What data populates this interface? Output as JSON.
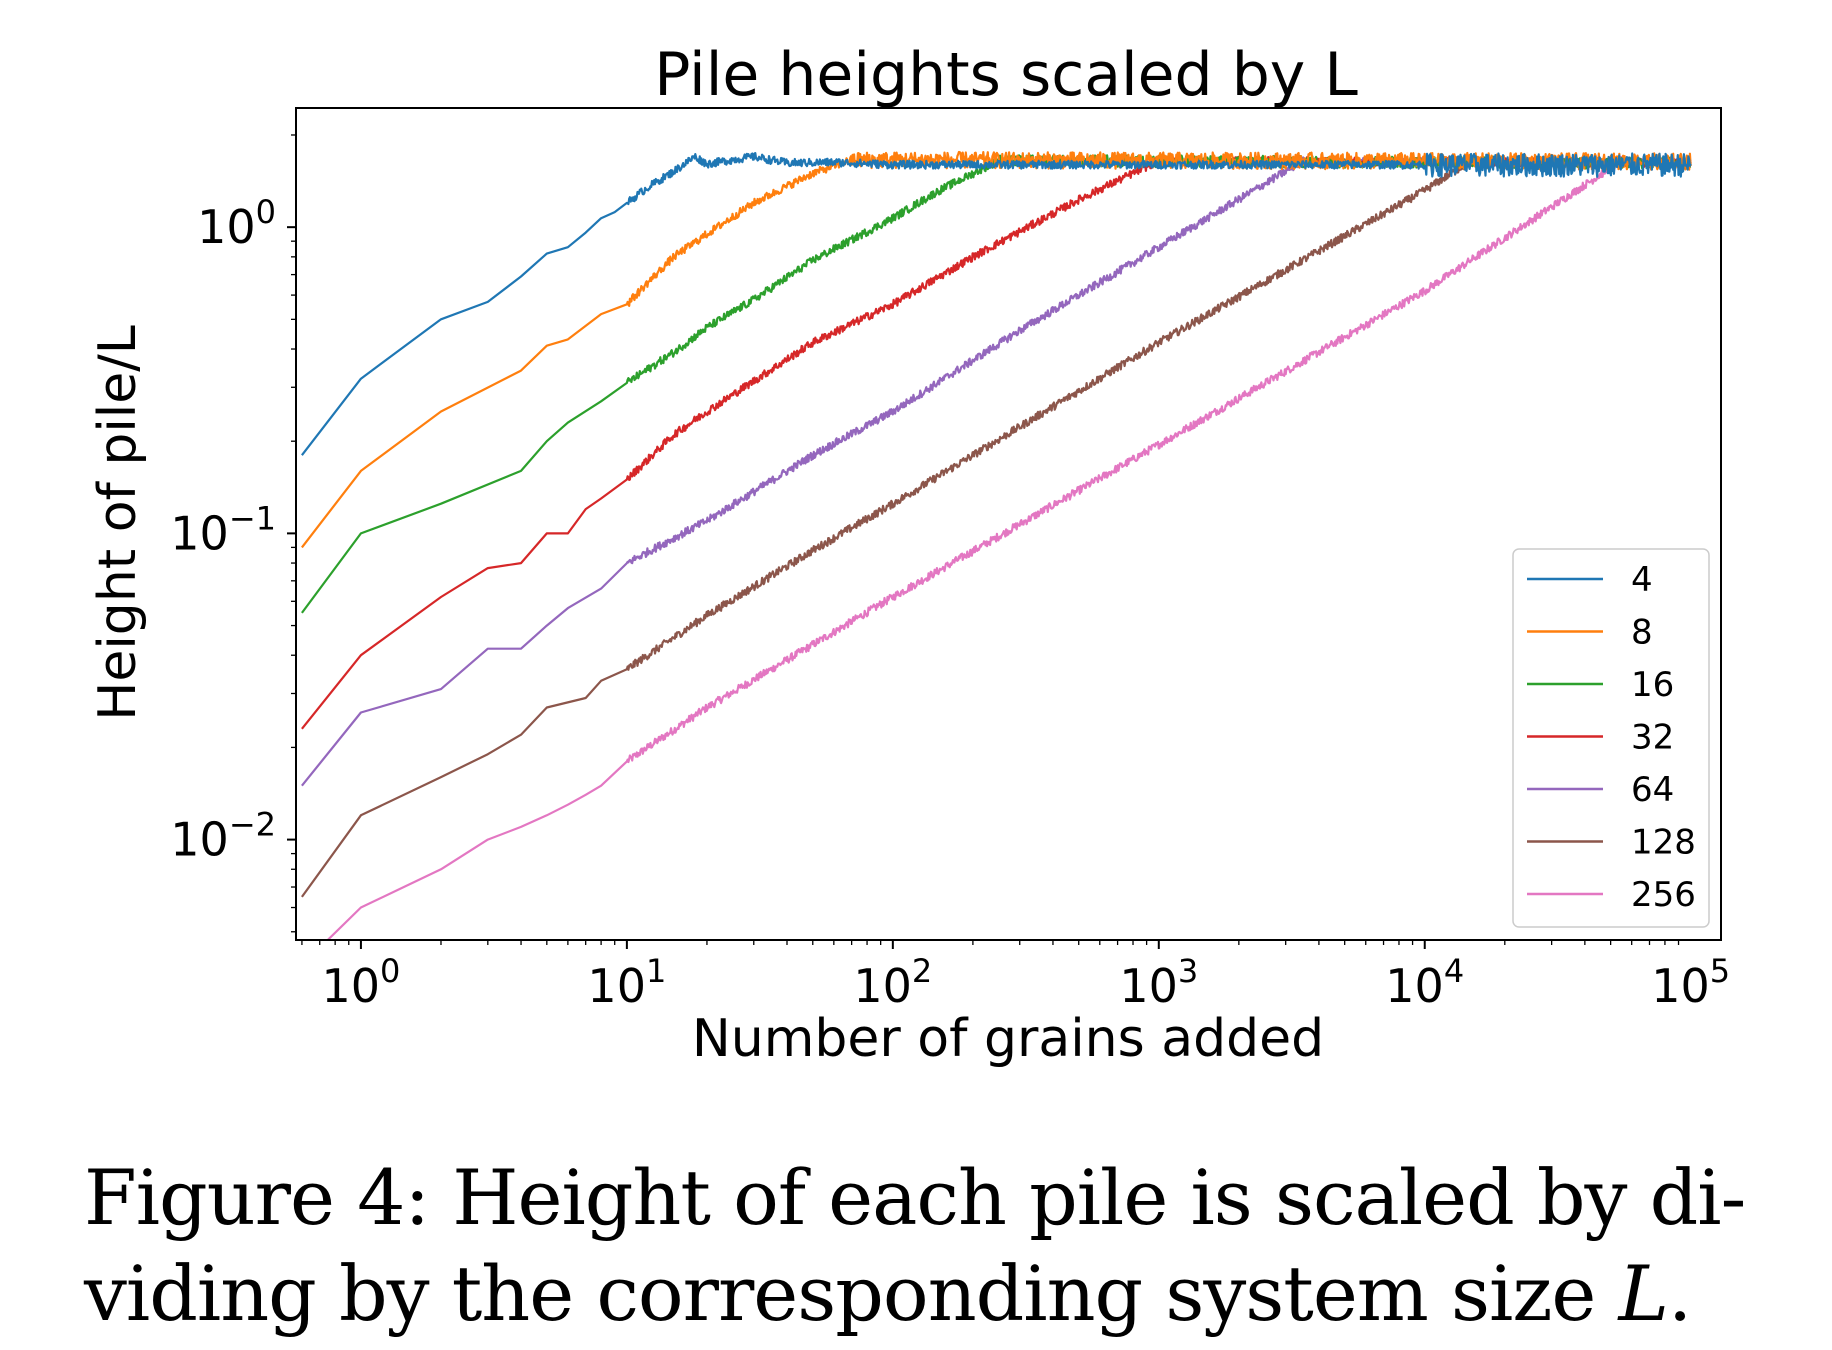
{
  "chart_data": {
    "type": "line",
    "title": "Pile heights scaled by L",
    "xlabel": "Number of grains added",
    "ylabel": "Height of pile/L",
    "xscale": "log",
    "yscale": "log",
    "xlim": [
      0.57,
      130000
    ],
    "ylim": [
      0.0047,
      2.45
    ],
    "xticks": [
      {
        "value": 1,
        "base": "10",
        "exp": "0"
      },
      {
        "value": 10,
        "base": "10",
        "exp": "1"
      },
      {
        "value": 100,
        "base": "10",
        "exp": "2"
      },
      {
        "value": 1000,
        "base": "10",
        "exp": "3"
      },
      {
        "value": 10000,
        "base": "10",
        "exp": "4"
      },
      {
        "value": 100000,
        "base": "10",
        "exp": "5"
      }
    ],
    "yticks": [
      {
        "value": 1,
        "base": "10",
        "exp": "0"
      },
      {
        "value": 0.1,
        "base": "10",
        "exp": "−1"
      },
      {
        "value": 0.01,
        "base": "10",
        "exp": "−2"
      }
    ],
    "grid": false,
    "legend_position": "lower-right",
    "legend_title": "",
    "series": [
      {
        "name": "4",
        "color": "#1f77b4",
        "L": 4,
        "x": [
          0.6,
          1,
          2,
          3,
          4,
          5,
          6,
          7,
          8,
          9,
          10,
          12,
          15,
          18,
          20,
          25,
          30,
          40,
          60,
          100,
          1000,
          10000,
          100000
        ],
        "y": [
          0.18,
          0.32,
          0.5,
          0.57,
          0.69,
          0.82,
          0.86,
          0.96,
          1.07,
          1.12,
          1.2,
          1.35,
          1.52,
          1.7,
          1.61,
          1.66,
          1.7,
          1.62,
          1.63,
          1.6,
          1.6,
          1.6,
          1.6
        ]
      },
      {
        "name": "8",
        "color": "#ff7f0e",
        "L": 8,
        "x": [
          0.6,
          1,
          2,
          4,
          5,
          6,
          8,
          10,
          12,
          15,
          20,
          30,
          50,
          70,
          100000
        ],
        "y": [
          0.09,
          0.16,
          0.25,
          0.34,
          0.41,
          0.43,
          0.52,
          0.56,
          0.66,
          0.8,
          0.95,
          1.2,
          1.5,
          1.66,
          1.64
        ]
      },
      {
        "name": "16",
        "color": "#2ca02c",
        "L": 16,
        "x": [
          0.6,
          1,
          2,
          4,
          5,
          6,
          8,
          10,
          15,
          20,
          30,
          50,
          100,
          150,
          250,
          100000
        ],
        "y": [
          0.055,
          0.1,
          0.125,
          0.16,
          0.2,
          0.23,
          0.27,
          0.31,
          0.39,
          0.47,
          0.58,
          0.78,
          1.07,
          1.32,
          1.65,
          1.62
        ]
      },
      {
        "name": "32",
        "color": "#d62728",
        "L": 32,
        "x": [
          0.6,
          1,
          2,
          3,
          4,
          5,
          6,
          7,
          8,
          10,
          15,
          20,
          50,
          100,
          200,
          500,
          1000,
          100000
        ],
        "y": [
          0.023,
          0.04,
          0.062,
          0.077,
          0.08,
          0.1,
          0.1,
          0.12,
          0.13,
          0.15,
          0.21,
          0.25,
          0.42,
          0.56,
          0.8,
          1.23,
          1.65,
          1.62
        ]
      },
      {
        "name": "64",
        "color": "#9467bd",
        "L": 64,
        "x": [
          0.6,
          1,
          2,
          3,
          4,
          5,
          6,
          8,
          10,
          20,
          50,
          100,
          300,
          1000,
          3500,
          100000
        ],
        "y": [
          0.015,
          0.026,
          0.031,
          0.042,
          0.042,
          0.05,
          0.057,
          0.066,
          0.08,
          0.11,
          0.18,
          0.25,
          0.46,
          0.86,
          1.65,
          1.64
        ]
      },
      {
        "name": "128",
        "color": "#8c564b",
        "L": 128,
        "x": [
          0.6,
          1,
          2,
          3,
          4,
          5,
          7,
          8,
          10,
          20,
          50,
          100,
          1000,
          10000,
          15000,
          100000
        ],
        "y": [
          0.0065,
          0.012,
          0.016,
          0.019,
          0.022,
          0.027,
          0.029,
          0.033,
          0.036,
          0.054,
          0.088,
          0.125,
          0.42,
          1.32,
          1.65,
          1.64
        ]
      },
      {
        "name": "256",
        "color": "#e377c2",
        "L": 256,
        "x": [
          0.75,
          1,
          2,
          3,
          4,
          5,
          6,
          7,
          8,
          10,
          20,
          100,
          1000,
          10000,
          55000,
          100000
        ],
        "y": [
          0.0047,
          0.006,
          0.008,
          0.01,
          0.011,
          0.012,
          0.013,
          0.014,
          0.015,
          0.018,
          0.027,
          0.062,
          0.195,
          0.62,
          1.65,
          1.65
        ]
      }
    ]
  },
  "caption": {
    "line1": "Figure 4:  Height of each pile is scaled by di-",
    "line2_pre": "viding by the corresponding system size ",
    "line2_var": "L",
    "line2_post": "."
  }
}
